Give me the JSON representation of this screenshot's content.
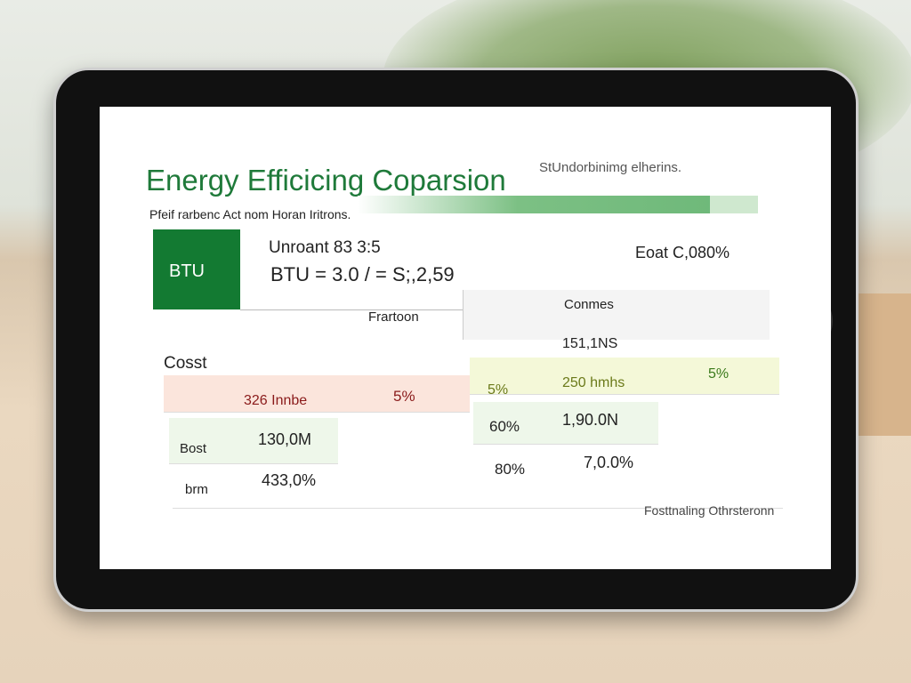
{
  "header": {
    "title": "Energy Efficicing Coparsion",
    "subtitle": "StUndorbinimg elherins.",
    "caption": "Pfeif rarbenc Act nom Horan Iritrons."
  },
  "summary": {
    "badge": "BTU",
    "line1": "Unroant 83 3:5",
    "line2": "BTU = 3.0 / = S;,2,59",
    "right": "Eoat C,080%"
  },
  "table": {
    "left_header": "Frartoon",
    "right_header": "Conmes",
    "right_subheader": "151,1NS",
    "row_label": "Cosst",
    "rows": [
      [
        "326 Innbe",
        "5%",
        "5%",
        "250 hmhs",
        "5%"
      ],
      [
        "Bost",
        "130,0M",
        "60%",
        "1,90.0N"
      ],
      [
        "brm",
        "433,0%",
        "80%",
        "7,0.0%"
      ]
    ]
  },
  "footer": "Fosttnaling Othrsteronn"
}
